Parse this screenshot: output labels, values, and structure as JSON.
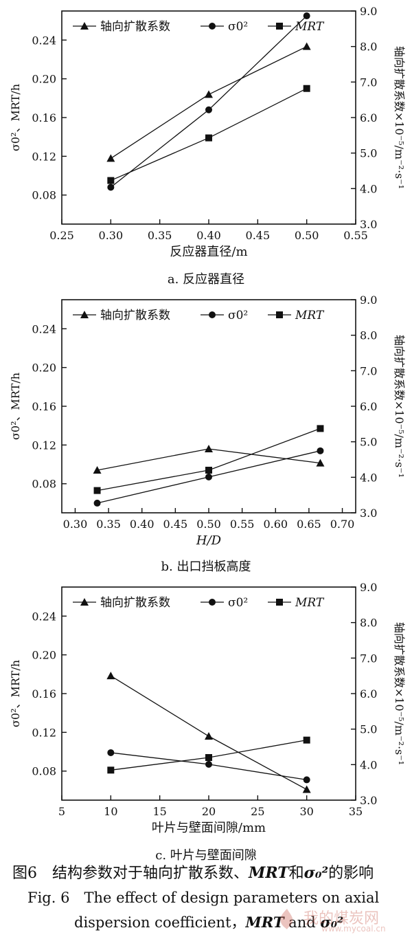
{
  "chart_data": [
    {
      "type": "line",
      "subtitle": "a. 反应器直径",
      "xlabel": "反应器直径/m",
      "ylabel_left": "σ0²、MRT/h",
      "ylabel_right": "轴向扩散系数×10⁻⁵/m⁻²·s⁻¹",
      "xlim": [
        0.25,
        0.55
      ],
      "xticks": [
        "0.25",
        "0.30",
        "0.35",
        "0.40",
        "0.45",
        "0.50",
        "0.55"
      ],
      "ylim_left": [
        0.05,
        0.27
      ],
      "yticks_left": [
        "0.08",
        "0.12",
        "0.16",
        "0.20",
        "0.24"
      ],
      "ylim_right": [
        3.0,
        9.0
      ],
      "yticks_right": [
        "3.0",
        "4.0",
        "5.0",
        "6.0",
        "7.0",
        "8.0",
        "9.0"
      ],
      "x": [
        0.3,
        0.4,
        0.5
      ],
      "series": [
        {
          "name": "轴向扩散系数",
          "marker": "triangle",
          "axis": "right",
          "values": [
            4.85,
            6.65,
            8.0
          ]
        },
        {
          "name": "σ0²",
          "marker": "circle",
          "axis": "left",
          "values": [
            0.088,
            0.168,
            0.265
          ]
        },
        {
          "name": "MRT",
          "marker": "square",
          "axis": "left",
          "values": [
            0.095,
            0.139,
            0.19
          ]
        }
      ]
    },
    {
      "type": "line",
      "subtitle": "b. 出口挡板高度",
      "xlabel": "H/D",
      "ylabel_left": "σ0²、MRT/h",
      "ylabel_right": "轴向扩散系数×10⁻⁵/m⁻²·s⁻¹",
      "xlim": [
        0.28,
        0.72
      ],
      "xticks": [
        "0.30",
        "0.35",
        "0.40",
        "0.45",
        "0.50",
        "0.55",
        "0.60",
        "0.65",
        "0.70"
      ],
      "ylim_left": [
        0.05,
        0.27
      ],
      "yticks_left": [
        "0.08",
        "0.12",
        "0.16",
        "0.20",
        "0.24"
      ],
      "ylim_right": [
        3.0,
        9.0
      ],
      "yticks_right": [
        "3.0",
        "4.0",
        "5.0",
        "6.0",
        "7.0",
        "8.0",
        "9.0"
      ],
      "x": [
        0.333,
        0.5,
        0.667
      ],
      "series": [
        {
          "name": "轴向扩散系数",
          "marker": "triangle",
          "axis": "right",
          "values": [
            4.2,
            4.8,
            4.4
          ]
        },
        {
          "name": "σ0²",
          "marker": "circle",
          "axis": "left",
          "values": [
            0.06,
            0.087,
            0.114
          ]
        },
        {
          "name": "MRT",
          "marker": "square",
          "axis": "left",
          "values": [
            0.073,
            0.094,
            0.137
          ]
        }
      ]
    },
    {
      "type": "line",
      "subtitle": "c. 叶片与壁面间隙",
      "xlabel": "叶片与壁面间隙/mm",
      "ylabel_left": "σ0²、MRT/h",
      "ylabel_right": "轴向扩散系数×10⁻⁵/m⁻²·s⁻¹",
      "xlim": [
        5,
        35
      ],
      "xticks": [
        "5",
        "10",
        "15",
        "20",
        "25",
        "30",
        "35"
      ],
      "ylim_left": [
        0.05,
        0.27
      ],
      "yticks_left": [
        "0.08",
        "0.12",
        "0.16",
        "0.20",
        "0.24"
      ],
      "ylim_right": [
        3.0,
        9.0
      ],
      "yticks_right": [
        "3.0",
        "4.0",
        "5.0",
        "6.0",
        "7.0",
        "8.0",
        "9.0"
      ],
      "x": [
        10,
        20,
        30
      ],
      "series": [
        {
          "name": "轴向扩散系数",
          "marker": "triangle",
          "axis": "right",
          "values": [
            6.5,
            4.8,
            3.3
          ]
        },
        {
          "name": "σ0²",
          "marker": "circle",
          "axis": "left",
          "values": [
            0.099,
            0.087,
            0.071
          ]
        },
        {
          "name": "MRT",
          "marker": "square",
          "axis": "left",
          "values": [
            0.081,
            0.094,
            0.112
          ]
        }
      ]
    }
  ],
  "caption": {
    "zh_prefix": "图6　结构参数对于轴向扩散系数、",
    "zh_mrt": "MRT",
    "zh_and": "和",
    "zh_sigma": "σ₀²",
    "zh_suffix": "的影响",
    "en_line1": "Fig. 6　The effect of design parameters on axial",
    "en_line2_prefix": "dispersion coefficient，",
    "en_mrt": "MRT",
    "en_and": " and ",
    "en_sigma": "σ₀²"
  },
  "watermark": {
    "text": "我的煤炭网",
    "url": "www.mycoal.cn"
  }
}
